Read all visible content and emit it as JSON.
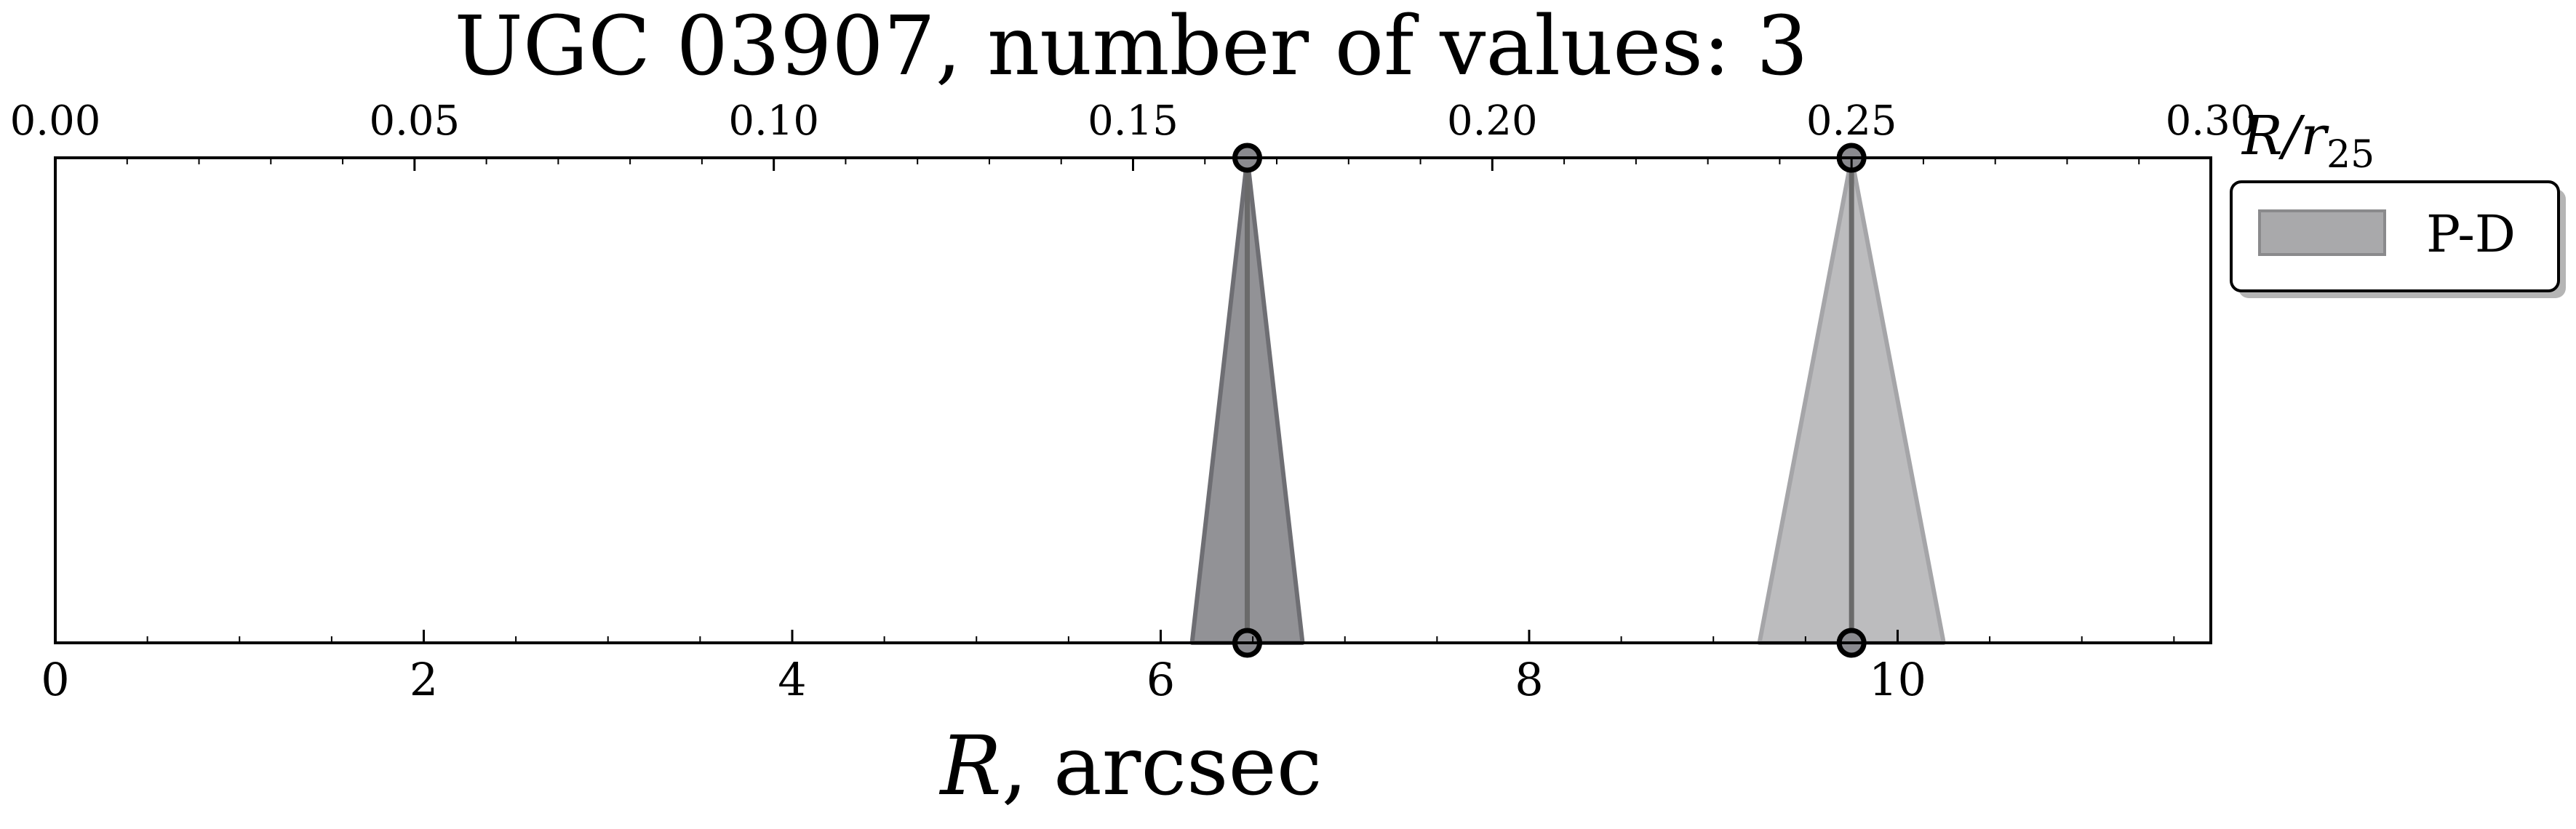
{
  "chart_data": {
    "type": "area",
    "title": "UGC 03907, number of values: 3",
    "xlabel_symbol": "R",
    "xlabel_rest": ", arcsec",
    "top_axis_label_main": "R/r",
    "top_axis_label_sub": "25",
    "xlim": [
      0,
      11.7
    ],
    "xticks": [
      0,
      2,
      4,
      6,
      8,
      10
    ],
    "xtick_labels": [
      "0",
      "2",
      "4",
      "6",
      "8",
      "10"
    ],
    "top_xlim": [
      0,
      0.3
    ],
    "top_xticks": [
      0.0,
      0.05,
      0.1,
      0.15,
      0.2,
      0.25,
      0.3
    ],
    "top_xtick_labels": [
      "0.00",
      "0.05",
      "0.10",
      "0.15",
      "0.20",
      "0.25",
      "0.30"
    ],
    "legend": {
      "placement": "outside-right-top",
      "entries": [
        "P-D"
      ]
    },
    "grid": false,
    "series": [
      {
        "name": "P-D",
        "x": 6.47,
        "halfwidth_bottom": 0.3,
        "color": "#6e6e73",
        "alpha": 0.75
      },
      {
        "name": "P-D",
        "x": 9.75,
        "halfwidth_bottom": 0.5,
        "color": "#a5a5a8",
        "alpha": 0.75
      }
    ],
    "colors": {
      "dark_triangle": "#6e6e73",
      "light_triangle": "#a5a5a8",
      "legend_patch": "#a9a9ab",
      "marker_fill": "#8a8a8f",
      "center_line": "#6a6a6a"
    }
  }
}
